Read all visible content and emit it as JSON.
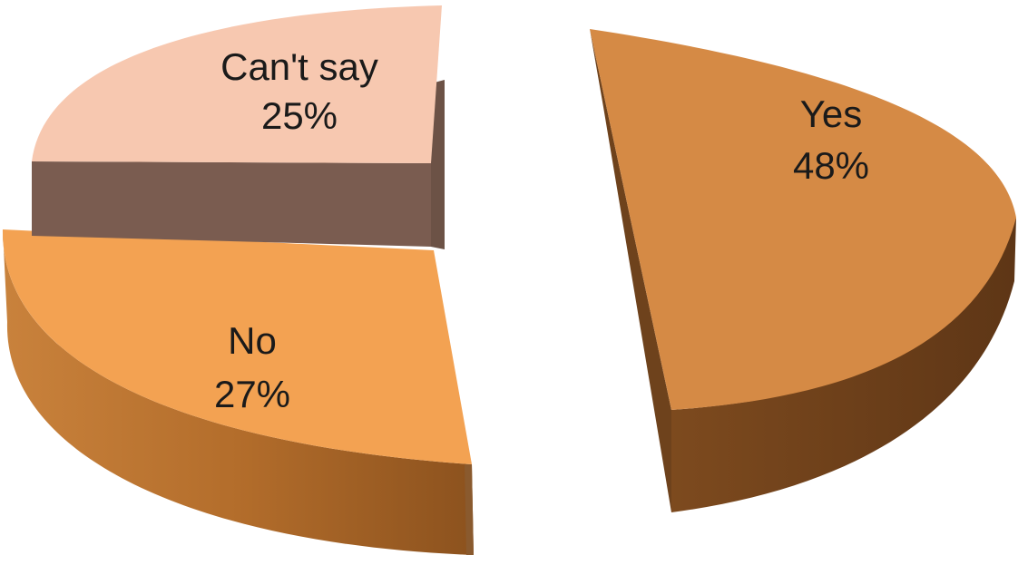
{
  "chart_data": {
    "type": "pie",
    "style": "3d-exploded",
    "title": "",
    "slices": [
      {
        "label": "Yes",
        "value": 48,
        "display": "48%",
        "color": "#D58A45",
        "side_color": "#6A3E18"
      },
      {
        "label": "No",
        "value": 27,
        "display": "27%",
        "color": "#F3A252",
        "side_color": "#B9732F"
      },
      {
        "label": "Can't say",
        "value": 25,
        "display": "25%",
        "color": "#F7C8B0",
        "side_color": "#7A5C50"
      }
    ]
  }
}
